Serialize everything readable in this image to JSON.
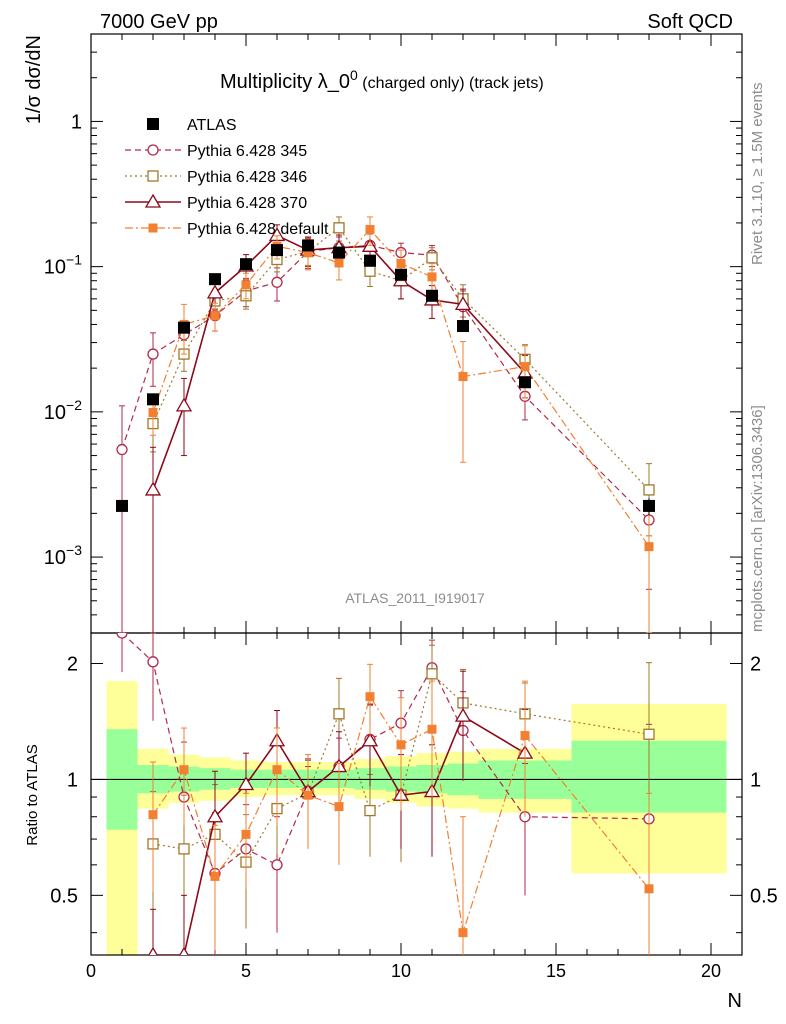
{
  "header": {
    "left": "7000 GeV pp",
    "right": "Soft QCD"
  },
  "side": {
    "rivet": "Rivet 3.1.10, ≥ 1.5M events",
    "site": "mcplots.cern.ch [arXiv:1306.3436]"
  },
  "chart_data": {
    "type": "scatter",
    "title_main": "Multiplicity λ_0",
    "title_sup": "0",
    "title_suffix": " (charged only) (track jets)",
    "analysis_label": "ATLAS_2011_I919017",
    "ylabel": "1/σ dσ/dN",
    "ratio_ylabel": "Ratio to ATLAS",
    "xlabel": "N",
    "xlim": [
      0,
      21
    ],
    "ylim": [
      0.0003,
      4
    ],
    "yscale": "log",
    "ratio_ylim": [
      0.35,
      2.4
    ],
    "ratio_yscale": "log",
    "x_ticks": [
      "0",
      "5",
      "10",
      "15",
      "20"
    ],
    "x_tick_values": [
      0,
      5,
      10,
      15,
      20
    ],
    "y_ticks": [
      {
        "v": 1,
        "base": "1",
        "exp": ""
      },
      {
        "v": 0.1,
        "base": "10",
        "exp": "−1"
      },
      {
        "v": 0.01,
        "base": "10",
        "exp": "−2"
      },
      {
        "v": 0.001,
        "base": "10",
        "exp": "−3"
      }
    ],
    "ratio_ticks": [
      {
        "v": 2,
        "label": "2"
      },
      {
        "v": 1,
        "label": "1"
      },
      {
        "v": 0.5,
        "label": "0.5"
      }
    ],
    "legend_position": "top-left",
    "data": {
      "name": "ATLAS",
      "x": [
        1,
        2,
        3,
        4,
        5,
        6,
        7,
        8,
        9,
        10,
        11,
        12,
        14,
        18
      ],
      "y": [
        0.00225,
        0.0122,
        0.038,
        0.082,
        0.104,
        0.13,
        0.14,
        0.125,
        0.11,
        0.088,
        0.063,
        0.039,
        0.016,
        0.00225
      ],
      "err": [
        0.0002,
        0.0008,
        0.002,
        0.004,
        0.005,
        0.006,
        0.006,
        0.006,
        0.006,
        0.005,
        0.004,
        0.003,
        0.0015,
        0.0003
      ]
    },
    "ratio_bands": [
      {
        "x0": 0.5,
        "x1": 1.5,
        "g": [
          0.74,
          1.35
        ],
        "y": [
          0.35,
          1.8
        ]
      },
      {
        "x0": 1.5,
        "x1": 2.5,
        "g": [
          0.92,
          1.09
        ],
        "y": [
          0.84,
          1.2
        ]
      },
      {
        "x0": 2.5,
        "x1": 3.5,
        "g": [
          0.93,
          1.08
        ],
        "y": [
          0.87,
          1.16
        ]
      },
      {
        "x0": 3.5,
        "x1": 4.5,
        "g": [
          0.94,
          1.07
        ],
        "y": [
          0.88,
          1.14
        ]
      },
      {
        "x0": 4.5,
        "x1": 5.5,
        "g": [
          0.95,
          1.06
        ],
        "y": [
          0.9,
          1.12
        ]
      },
      {
        "x0": 5.5,
        "x1": 6.5,
        "g": [
          0.95,
          1.06
        ],
        "y": [
          0.91,
          1.11
        ]
      },
      {
        "x0": 6.5,
        "x1": 7.5,
        "g": [
          0.95,
          1.06
        ],
        "y": [
          0.91,
          1.11
        ]
      },
      {
        "x0": 7.5,
        "x1": 8.5,
        "g": [
          0.95,
          1.06
        ],
        "y": [
          0.91,
          1.11
        ]
      },
      {
        "x0": 8.5,
        "x1": 9.5,
        "g": [
          0.94,
          1.07
        ],
        "y": [
          0.89,
          1.13
        ]
      },
      {
        "x0": 9.5,
        "x1": 10.5,
        "g": [
          0.93,
          1.08
        ],
        "y": [
          0.87,
          1.15
        ]
      },
      {
        "x0": 10.5,
        "x1": 11.5,
        "g": [
          0.92,
          1.09
        ],
        "y": [
          0.85,
          1.17
        ]
      },
      {
        "x0": 11.5,
        "x1": 12.5,
        "g": [
          0.91,
          1.1
        ],
        "y": [
          0.84,
          1.18
        ]
      },
      {
        "x0": 12.5,
        "x1": 15.5,
        "g": [
          0.89,
          1.12
        ],
        "y": [
          0.82,
          1.2
        ]
      },
      {
        "x0": 15.5,
        "x1": 20.5,
        "g": [
          0.82,
          1.26
        ],
        "y": [
          0.57,
          1.57
        ]
      }
    ],
    "series": [
      {
        "name": "Pythia 6.428 345",
        "color": "#b22a4a",
        "marker": "circle",
        "dash": "6,4",
        "x": [
          1,
          2,
          3,
          4,
          5,
          6,
          7,
          8,
          9,
          10,
          11,
          12,
          14,
          18
        ],
        "y": [
          0.0055,
          0.025,
          0.034,
          0.046,
          0.068,
          0.078,
          0.127,
          0.135,
          0.14,
          0.125,
          0.12,
          0.053,
          0.0128,
          0.0018
        ],
        "err": [
          0.0055,
          0.01,
          0.008,
          0.01,
          0.015,
          0.02,
          0.03,
          0.025,
          0.03,
          0.02,
          0.02,
          0.015,
          0.004,
          0.0012
        ],
        "ratio": [
          2.4,
          2.02,
          0.9,
          0.57,
          0.66,
          0.6,
          0.93,
          1.08,
          1.27,
          1.4,
          1.95,
          1.34,
          0.8,
          0.79
        ],
        "ratio_err": [
          0.5,
          0.6,
          0.35,
          0.25,
          0.2,
          0.2,
          0.15,
          0.2,
          0.3,
          0.3,
          0.35,
          0.35,
          0.3,
          0.6
        ]
      },
      {
        "name": "Pythia 6.428 346",
        "color": "#a0782a",
        "marker": "square",
        "dash": "2,3",
        "x": [
          2,
          3,
          4,
          5,
          6,
          7,
          8,
          9,
          10,
          11,
          12,
          14,
          18
        ],
        "y": [
          0.0083,
          0.025,
          0.058,
          0.063,
          0.112,
          0.127,
          0.185,
          0.093,
          0.08,
          0.115,
          0.06,
          0.023,
          0.0029
        ],
        "err": [
          0.003,
          0.006,
          0.012,
          0.012,
          0.02,
          0.025,
          0.035,
          0.02,
          0.02,
          0.02,
          0.015,
          0.006,
          0.0015
        ],
        "ratio": [
          0.68,
          0.66,
          0.72,
          0.61,
          0.84,
          0.92,
          1.48,
          0.83,
          0.91,
          1.88,
          1.58,
          1.48,
          1.31
        ],
        "ratio_err": [
          0.25,
          0.25,
          0.25,
          0.2,
          0.2,
          0.2,
          0.35,
          0.2,
          0.3,
          0.35,
          0.35,
          0.3,
          0.7
        ]
      },
      {
        "name": "Pythia 6.428 370",
        "color": "#8b0a1a",
        "marker": "triangle",
        "dash": "",
        "x": [
          2,
          3,
          4,
          5,
          6,
          7,
          8,
          9,
          10,
          11,
          12,
          14
        ],
        "y": [
          0.0029,
          0.011,
          0.066,
          0.101,
          0.164,
          0.13,
          0.135,
          0.138,
          0.08,
          0.059,
          0.055,
          0.0185
        ],
        "err": [
          0.0028,
          0.006,
          0.015,
          0.02,
          0.03,
          0.03,
          0.03,
          0.03,
          0.02,
          0.015,
          0.015,
          0.006
        ],
        "ratio": [
          0.24,
          0.3,
          0.8,
          0.97,
          1.26,
          0.93,
          1.08,
          1.26,
          0.91,
          0.93,
          1.46,
          1.17
        ],
        "ratio_err": [
          0.22,
          0.2,
          0.25,
          0.2,
          0.25,
          0.2,
          0.25,
          0.3,
          0.25,
          0.3,
          0.45,
          0.35
        ]
      },
      {
        "name": "Pythia 6.428 default",
        "color": "#f28030",
        "marker": "fsquare",
        "dash": "8,3,2,3",
        "x": [
          2,
          3,
          4,
          5,
          6,
          7,
          8,
          9,
          10,
          11,
          12,
          14,
          18
        ],
        "y": [
          0.0099,
          0.04,
          0.046,
          0.075,
          0.138,
          0.125,
          0.106,
          0.18,
          0.105,
          0.085,
          0.0175,
          0.0205,
          0.00118
        ],
        "err": [
          0.003,
          0.015,
          0.01,
          0.015,
          0.025,
          0.03,
          0.025,
          0.04,
          0.025,
          0.02,
          0.013,
          0.008,
          0.0009
        ],
        "ratio": [
          0.81,
          1.06,
          0.56,
          0.72,
          1.06,
          0.91,
          0.85,
          1.64,
          1.23,
          1.35,
          0.4,
          1.3,
          0.52
        ],
        "ratio_err": [
          0.3,
          0.3,
          0.2,
          0.2,
          0.3,
          0.25,
          0.25,
          0.35,
          0.4,
          0.45,
          0.4,
          0.5,
          0.4
        ]
      }
    ]
  }
}
